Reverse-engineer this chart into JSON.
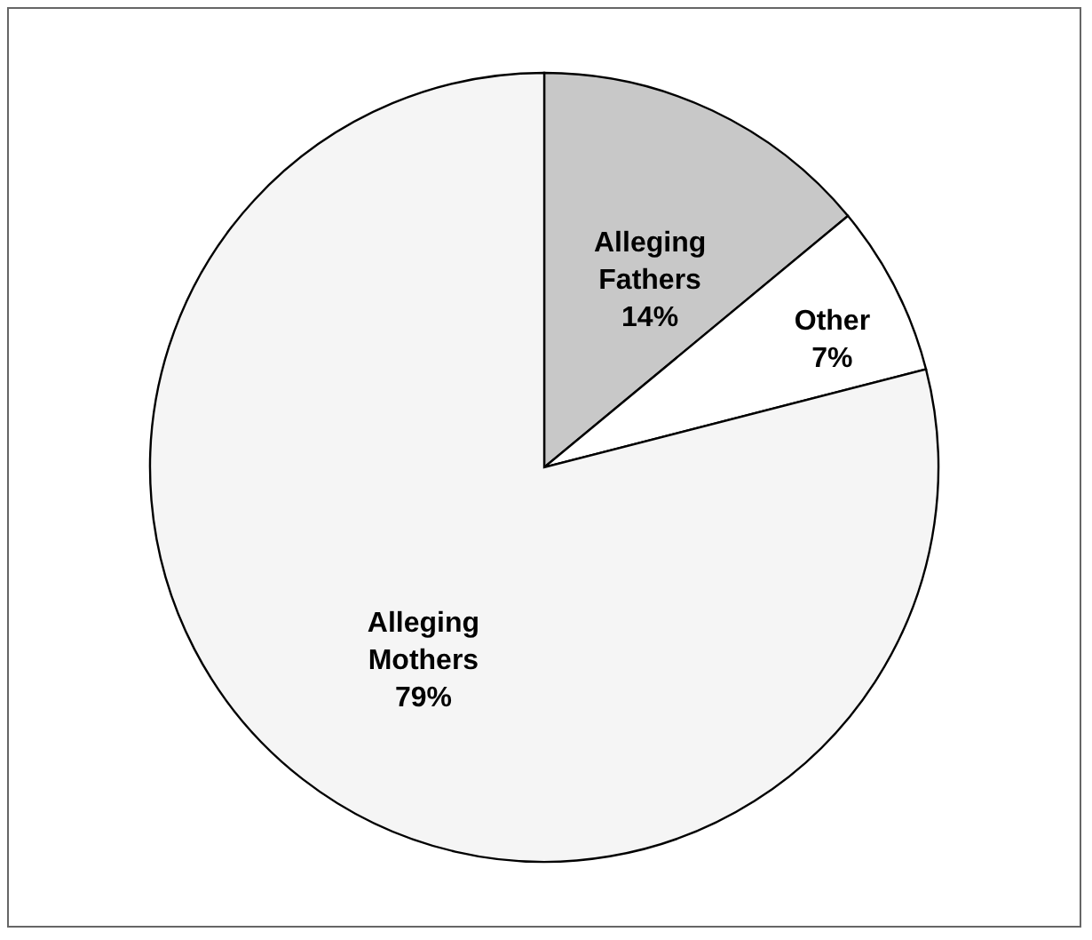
{
  "chart_data": {
    "type": "pie",
    "categories": [
      "Alleging Fathers",
      "Other",
      "Alleging Mothers"
    ],
    "values": [
      14,
      7,
      79
    ],
    "colors": [
      "#c8c8c8",
      "#ffffff",
      "#f5f5f5"
    ],
    "value_labels": [
      "14%",
      "7%",
      "79%"
    ]
  }
}
